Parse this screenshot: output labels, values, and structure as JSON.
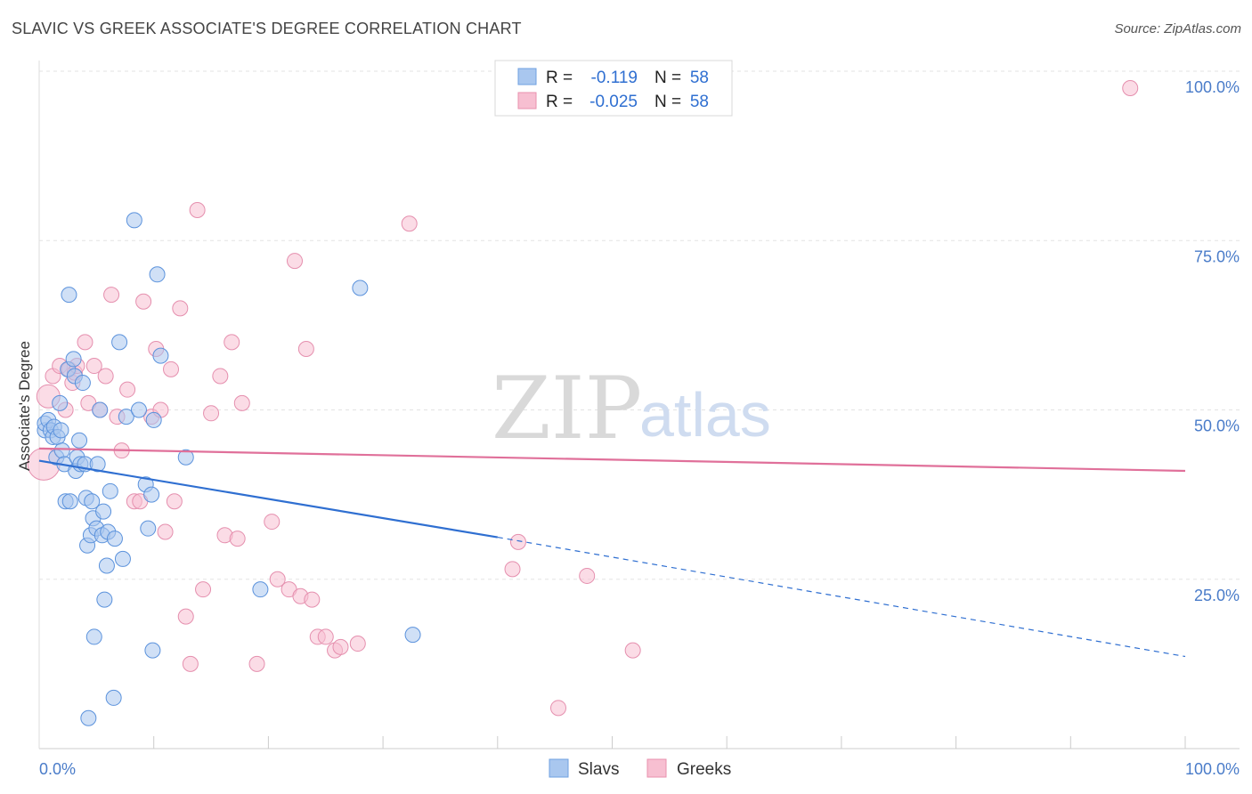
{
  "title": "SLAVIC VS GREEK ASSOCIATE'S DEGREE CORRELATION CHART",
  "source": "Source: ZipAtlas.com",
  "watermark": {
    "left": "ZIP",
    "right": "atlas"
  },
  "chart_data": {
    "type": "scatter",
    "xlabel": "",
    "ylabel": "Associate's Degree",
    "xlim": [
      0,
      100
    ],
    "ylim": [
      0,
      100
    ],
    "x_tick_labels": [
      "0.0%",
      "100.0%"
    ],
    "y_tick_labels": [
      "100.0%",
      "75.0%",
      "50.0%",
      "25.0%"
    ],
    "y_tick_values": [
      100,
      75,
      50,
      25
    ],
    "grid": true,
    "legend_stats": [
      {
        "label_r": "R =",
        "r": "-0.119",
        "label_n": "N =",
        "n": "58",
        "color": "#a9c7ef",
        "border": "#6fa0e0"
      },
      {
        "label_r": "R =",
        "r": "-0.025",
        "label_n": "N =",
        "n": "58",
        "color": "#f7bfd1",
        "border": "#e990ae"
      }
    ],
    "series": [
      {
        "name": "Slavs",
        "color": "#a9c7ef",
        "stroke": "#5b92dc",
        "trend": {
          "x0": 0,
          "y0": 42.5,
          "x1": 40,
          "y1": 31.2,
          "x_end": 100,
          "y_end": 13.6,
          "color": "#2f6fd1"
        },
        "points": [
          [
            0.5,
            47
          ],
          [
            0.5,
            48
          ],
          [
            0.8,
            48.5
          ],
          [
            1,
            47
          ],
          [
            1.2,
            46
          ],
          [
            1.3,
            47.5
          ],
          [
            1.5,
            43
          ],
          [
            1.6,
            46
          ],
          [
            1.8,
            51
          ],
          [
            1.9,
            47
          ],
          [
            2,
            44
          ],
          [
            2.2,
            42
          ],
          [
            2.3,
            36.5
          ],
          [
            2.5,
            56
          ],
          [
            2.6,
            67
          ],
          [
            2.7,
            36.5
          ],
          [
            3,
            57.5
          ],
          [
            3.1,
            55
          ],
          [
            3.2,
            41
          ],
          [
            3.3,
            43
          ],
          [
            3.5,
            45.5
          ],
          [
            3.6,
            42
          ],
          [
            3.8,
            54
          ],
          [
            4,
            42
          ],
          [
            4.1,
            37
          ],
          [
            4.2,
            30
          ],
          [
            4.3,
            4.5
          ],
          [
            4.5,
            31.5
          ],
          [
            4.6,
            36.5
          ],
          [
            4.7,
            34
          ],
          [
            4.8,
            16.5
          ],
          [
            5,
            32.5
          ],
          [
            5.1,
            42
          ],
          [
            5.3,
            50
          ],
          [
            5.5,
            31.5
          ],
          [
            5.6,
            35
          ],
          [
            5.7,
            22
          ],
          [
            5.9,
            27
          ],
          [
            6,
            32
          ],
          [
            6.2,
            38
          ],
          [
            6.5,
            7.5
          ],
          [
            6.6,
            31
          ],
          [
            7,
            60
          ],
          [
            7.3,
            28
          ],
          [
            7.6,
            49
          ],
          [
            8.3,
            78
          ],
          [
            8.7,
            50
          ],
          [
            9.3,
            39
          ],
          [
            9.5,
            32.5
          ],
          [
            9.8,
            37.5
          ],
          [
            9.9,
            14.5
          ],
          [
            10,
            48.5
          ],
          [
            10.3,
            70
          ],
          [
            10.6,
            58
          ],
          [
            12.8,
            43
          ],
          [
            19.3,
            23.5
          ],
          [
            28,
            68
          ],
          [
            32.6,
            16.8
          ]
        ]
      },
      {
        "name": "Greeks",
        "color": "#f7bfd1",
        "stroke": "#e58fae",
        "trend": {
          "x0": 0,
          "y0": 44.3,
          "x1": 100,
          "y1": 41.0,
          "color": "#e0709a"
        },
        "points": [
          [
            0.4,
            42
          ],
          [
            0.8,
            52
          ],
          [
            1.2,
            55
          ],
          [
            1.8,
            56.5
          ],
          [
            2.3,
            50
          ],
          [
            2.6,
            56
          ],
          [
            2.9,
            54
          ],
          [
            3.1,
            55.5
          ],
          [
            3.3,
            56.5
          ],
          [
            4,
            60
          ],
          [
            4.3,
            51
          ],
          [
            4.8,
            56.5
          ],
          [
            5.3,
            50
          ],
          [
            5.8,
            55
          ],
          [
            6.3,
            67
          ],
          [
            6.8,
            49
          ],
          [
            7.2,
            44
          ],
          [
            7.7,
            53
          ],
          [
            8.3,
            36.5
          ],
          [
            8.8,
            36.5
          ],
          [
            9.1,
            66
          ],
          [
            9.8,
            49
          ],
          [
            10.2,
            59
          ],
          [
            10.6,
            50
          ],
          [
            11,
            32
          ],
          [
            11.5,
            56
          ],
          [
            11.8,
            36.5
          ],
          [
            12.3,
            65
          ],
          [
            12.8,
            19.5
          ],
          [
            13.2,
            12.5
          ],
          [
            13.8,
            79.5
          ],
          [
            14.3,
            23.5
          ],
          [
            15,
            49.5
          ],
          [
            15.8,
            55
          ],
          [
            16.2,
            31.5
          ],
          [
            16.8,
            60
          ],
          [
            17.3,
            31
          ],
          [
            17.7,
            51
          ],
          [
            19,
            12.5
          ],
          [
            20.3,
            33.5
          ],
          [
            20.8,
            25
          ],
          [
            21.8,
            23.5
          ],
          [
            22.3,
            72
          ],
          [
            22.8,
            22.5
          ],
          [
            23.3,
            59
          ],
          [
            23.8,
            22
          ],
          [
            24.3,
            16.5
          ],
          [
            25,
            16.5
          ],
          [
            25.8,
            14.5
          ],
          [
            26.3,
            15
          ],
          [
            27.8,
            15.5
          ],
          [
            32.3,
            77.5
          ],
          [
            41.3,
            26.5
          ],
          [
            41.8,
            30.5
          ],
          [
            45.3,
            6
          ],
          [
            47.8,
            25.5
          ],
          [
            51.8,
            14.5
          ],
          [
            95.2,
            97.5
          ]
        ]
      }
    ]
  }
}
